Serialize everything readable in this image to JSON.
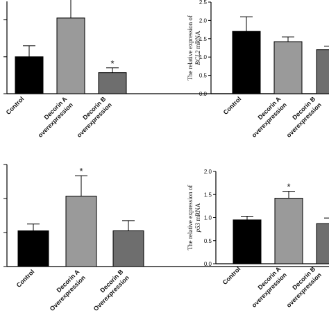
{
  "chart_data": [
    {
      "type": "bar",
      "panel": "top-left",
      "categories": [
        "Control",
        "Decorin A\noverexpression",
        "Decorin B\noverexpression"
      ],
      "values": [
        1.0,
        2.05,
        0.57
      ],
      "errors": [
        0.3,
        0.55,
        0.13
      ],
      "significance": [
        "",
        "*",
        "*"
      ],
      "colors": [
        "#000000",
        "#9a9a9a",
        "#6e6e6e"
      ],
      "ylim": [
        0,
        2.5
      ],
      "yticks": [
        0,
        1.0,
        2.0
      ],
      "show_tick_labels": false
    },
    {
      "type": "bar",
      "panel": "top-right",
      "categories": [
        "Control",
        "Decorin A\noverexpression",
        "Decorin B\noverexpression"
      ],
      "values": [
        1.7,
        1.42,
        1.2
      ],
      "errors": [
        0.4,
        0.13,
        0.1
      ],
      "significance": [
        "",
        "",
        ""
      ],
      "colors": [
        "#000000",
        "#9a9a9a",
        "#6e6e6e"
      ],
      "ylim": [
        0,
        2.5
      ],
      "yticks": [
        "0.0",
        "0.5",
        "1.0",
        "1.5",
        "2.0",
        "2.5"
      ],
      "show_tick_labels": true,
      "ylabel_top": "The relative expression of",
      "ylabel_gene": "BCL2",
      "ylabel_suffix": "mRNA"
    },
    {
      "type": "bar",
      "panel": "bottom-left",
      "categories": [
        "Control",
        "Decorin A\nOverexpression",
        "Decorin B\nOverexpression"
      ],
      "values": [
        1.05,
        2.07,
        1.05
      ],
      "errors": [
        0.2,
        0.6,
        0.3
      ],
      "significance": [
        "",
        "*",
        ""
      ],
      "colors": [
        "#000000",
        "#9a9a9a",
        "#6e6e6e"
      ],
      "ylim": [
        0,
        3.0
      ],
      "yticks": [
        0,
        1.0,
        2.0,
        3.0
      ],
      "show_tick_labels": false
    },
    {
      "type": "bar",
      "panel": "bottom-right",
      "categories": [
        "Control",
        "Decorin A\noverexpression",
        "Decorin B\noverexpression"
      ],
      "values": [
        0.95,
        1.42,
        0.87
      ],
      "errors": [
        0.08,
        0.15,
        0.12
      ],
      "significance": [
        "",
        "*",
        ""
      ],
      "colors": [
        "#000000",
        "#9a9a9a",
        "#6e6e6e"
      ],
      "ylim": [
        0,
        2.0
      ],
      "yticks": [
        "0.0",
        "0.5",
        "1.0",
        "1.5",
        "2.0"
      ],
      "show_tick_labels": true,
      "ylabel_top": "The relative expression of",
      "ylabel_gene": "p53",
      "ylabel_suffix": "mRNA"
    }
  ]
}
